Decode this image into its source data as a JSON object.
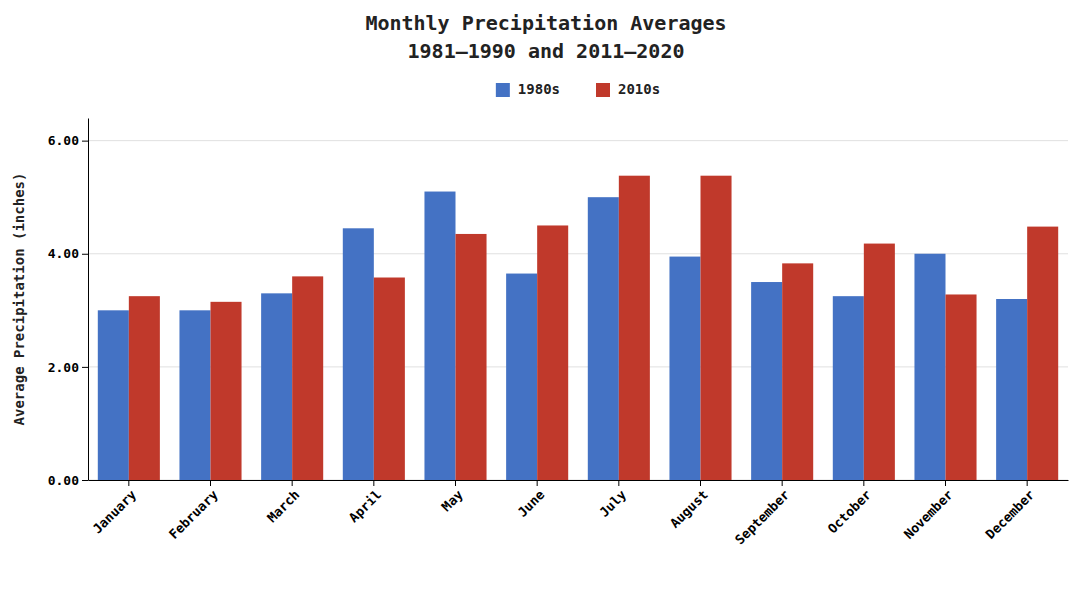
{
  "chart_data": {
    "type": "bar",
    "title": "Monthly Precipitation Averages",
    "subtitle": "1981–1990 and 2011–2020",
    "categories": [
      "January",
      "February",
      "March",
      "April",
      "May",
      "June",
      "July",
      "August",
      "September",
      "October",
      "November",
      "December"
    ],
    "series": [
      {
        "name": "1980s",
        "color": "#4472C4",
        "values": [
          3.0,
          3.0,
          3.3,
          4.45,
          5.1,
          3.65,
          5.0,
          3.95,
          3.5,
          3.25,
          4.0,
          3.2
        ]
      },
      {
        "name": "2010s",
        "color": "#C0392B",
        "values": [
          3.25,
          3.15,
          3.6,
          3.58,
          4.35,
          4.5,
          5.38,
          5.38,
          3.83,
          4.18,
          3.28,
          4.48
        ]
      }
    ],
    "y_label": "Average Precipitation (inches)",
    "ylim": [
      0,
      6.4
    ],
    "yticks": [
      {
        "value": 0.0,
        "label": "0.00"
      },
      {
        "value": 2.0,
        "label": "2.00"
      },
      {
        "value": 4.0,
        "label": "4.00"
      },
      {
        "value": 6.0,
        "label": "6.00"
      }
    ],
    "grid": true,
    "legend": "top"
  }
}
